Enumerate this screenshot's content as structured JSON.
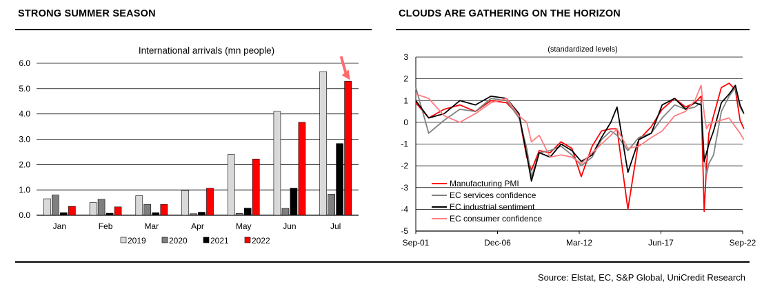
{
  "panels": {
    "left_title": "STRONG SUMMER SEASON",
    "right_title": "CLOUDS ARE GATHERING ON THE HORIZON"
  },
  "source": "Source: Elstat, EC, S&P Global, UniCredit Research",
  "chart_data": [
    {
      "type": "bar",
      "title": "International arrivals (mn people)",
      "categories": [
        "Jan",
        "Feb",
        "Mar",
        "Apr",
        "May",
        "Jun",
        "Jul"
      ],
      "ylim": [
        0,
        6
      ],
      "yticks": [
        "0.0",
        "1.0",
        "2.0",
        "3.0",
        "4.0",
        "5.0",
        "6.0"
      ],
      "grid": true,
      "legend_position": "bottom",
      "series": [
        {
          "name": "2019",
          "color": "#d9d9d9",
          "values": [
            0.65,
            0.5,
            0.77,
            0.98,
            2.4,
            4.1,
            5.67
          ]
        },
        {
          "name": "2020",
          "color": "#7f7f7f",
          "values": [
            0.8,
            0.63,
            0.43,
            0.06,
            0.07,
            0.27,
            0.83
          ]
        },
        {
          "name": "2021",
          "color": "#000000",
          "values": [
            0.1,
            0.08,
            0.1,
            0.12,
            0.28,
            1.07,
            2.83
          ]
        },
        {
          "name": "2022",
          "color": "#ff0000",
          "values": [
            0.35,
            0.33,
            0.43,
            1.07,
            2.22,
            3.67,
            5.29
          ]
        }
      ],
      "annotation": "red arrow pointing to Jul 2022 bar"
    },
    {
      "type": "line",
      "subtitle": "(standardized levels)",
      "xticks": [
        "Sep-01",
        "Dec-06",
        "Mar-12",
        "Jun-17",
        "Sep-22"
      ],
      "yticks": [
        "3",
        "2",
        "1",
        "0",
        "-1",
        "-2",
        "-3",
        "-4",
        "-5"
      ],
      "ylim": [
        -5,
        3
      ],
      "x_range": [
        "2001-09",
        "2022-09"
      ],
      "grid": true,
      "legend_position": "bottom-left",
      "series": [
        {
          "name": "Manufacturing PMI",
          "color": "#ff0000",
          "x": [
            2001.67,
            2002.5,
            2003.5,
            2004.5,
            2005.5,
            2006.5,
            2007.5,
            2008.3,
            2008.8,
            2009.1,
            2009.6,
            2010.3,
            2011.0,
            2011.7,
            2012.3,
            2013.0,
            2013.6,
            2014.2,
            2014.6,
            2015.3,
            2016.0,
            2016.8,
            2017.5,
            2018.3,
            2019.0,
            2019.6,
            2020.0,
            2020.2,
            2020.35,
            2020.5,
            2020.8,
            2021.3,
            2021.8,
            2022.2,
            2022.5,
            2022.75
          ],
          "y": [
            0.9,
            0.2,
            0.6,
            0.8,
            0.5,
            1.0,
            0.9,
            0.3,
            -1.6,
            -2.2,
            -1.3,
            -1.4,
            -0.9,
            -1.2,
            -2.5,
            -1.1,
            -0.4,
            -0.3,
            -0.3,
            -4.0,
            -0.8,
            -0.2,
            0.6,
            1.1,
            0.7,
            0.9,
            1.2,
            -4.1,
            -2.0,
            -0.5,
            0.3,
            1.6,
            1.8,
            1.5,
            0.1,
            -0.3
          ]
        },
        {
          "name": "EC services confidence",
          "color": "#808080",
          "x": [
            2001.67,
            2002.5,
            2003.5,
            2004.5,
            2005.5,
            2006.5,
            2007.5,
            2008.3,
            2008.8,
            2009.1,
            2009.6,
            2010.3,
            2011.0,
            2011.7,
            2012.3,
            2013.0,
            2013.6,
            2014.2,
            2014.6,
            2015.3,
            2016.0,
            2016.8,
            2017.5,
            2018.3,
            2019.0,
            2019.6,
            2020.0,
            2020.2,
            2020.35,
            2020.5,
            2020.8,
            2021.3,
            2021.8,
            2022.2,
            2022.5,
            2022.75
          ],
          "y": [
            1.6,
            -0.5,
            0.1,
            0.6,
            0.5,
            1.1,
            1.0,
            0.2,
            -1.2,
            -2.5,
            -1.4,
            -1.3,
            -1.1,
            -1.5,
            -2.0,
            -1.6,
            -0.8,
            -0.4,
            -0.6,
            -1.3,
            -0.7,
            -0.5,
            0.2,
            0.8,
            0.6,
            0.7,
            0.9,
            -1.6,
            -2.4,
            -1.9,
            -1.5,
            0.5,
            1.2,
            1.6,
            0.7,
            0.4
          ]
        },
        {
          "name": "EC industrial sentiment",
          "color": "#000000",
          "x": [
            2001.67,
            2002.5,
            2003.5,
            2004.5,
            2005.5,
            2006.5,
            2007.5,
            2008.3,
            2008.8,
            2009.1,
            2009.6,
            2010.3,
            2011.0,
            2011.7,
            2012.3,
            2013.0,
            2013.6,
            2014.2,
            2014.6,
            2015.3,
            2016.0,
            2016.8,
            2017.5,
            2018.3,
            2019.0,
            2019.6,
            2020.0,
            2020.2,
            2020.35,
            2020.5,
            2020.8,
            2021.3,
            2021.8,
            2022.2,
            2022.5,
            2022.75
          ],
          "y": [
            1.0,
            0.2,
            0.4,
            1.0,
            0.8,
            1.2,
            1.1,
            0.4,
            -1.5,
            -2.7,
            -1.4,
            -1.6,
            -1.0,
            -1.3,
            -1.8,
            -1.5,
            -0.7,
            0.0,
            0.7,
            -2.3,
            -0.8,
            -0.5,
            0.8,
            1.1,
            0.6,
            0.9,
            0.8,
            -1.8,
            -1.4,
            -1.0,
            -0.4,
            0.9,
            1.3,
            1.7,
            0.8,
            0.4
          ]
        },
        {
          "name": "EC consumer confidence",
          "color": "#ff7c80",
          "x": [
            2001.67,
            2002.5,
            2003.5,
            2004.5,
            2005.5,
            2006.5,
            2007.5,
            2008.3,
            2008.8,
            2009.1,
            2009.6,
            2010.3,
            2011.0,
            2011.7,
            2012.3,
            2013.0,
            2013.6,
            2014.2,
            2014.6,
            2015.3,
            2016.0,
            2016.8,
            2017.5,
            2018.3,
            2019.0,
            2019.6,
            2020.0,
            2020.2,
            2020.35,
            2020.5,
            2020.8,
            2021.3,
            2021.8,
            2022.2,
            2022.5,
            2022.75
          ],
          "y": [
            1.3,
            1.1,
            0.3,
            0.0,
            0.4,
            0.9,
            1.1,
            0.3,
            0.0,
            -0.9,
            -0.6,
            -1.6,
            -1.5,
            -1.6,
            -1.9,
            -1.4,
            -1.0,
            -0.6,
            -0.3,
            -1.2,
            -1.1,
            -0.7,
            -0.4,
            0.3,
            0.5,
            1.0,
            1.7,
            0.4,
            -0.3,
            -0.1,
            0.0,
            0.1,
            0.2,
            -0.2,
            -0.5,
            -0.8
          ]
        }
      ]
    }
  ]
}
